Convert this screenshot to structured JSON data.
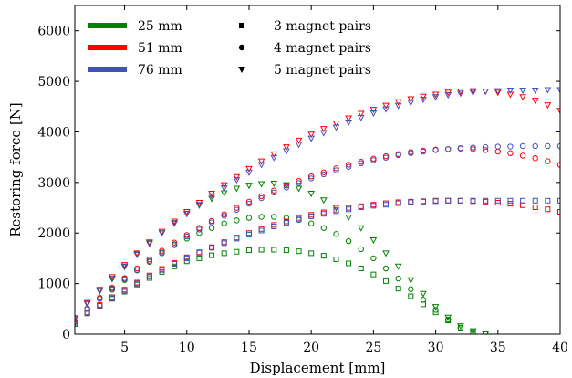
{
  "chart_data": {
    "type": "scatter",
    "xlabel": "Displacement [mm]",
    "ylabel": "Restoring force [N]",
    "xlim": [
      1,
      40
    ],
    "ylim": [
      0,
      6500
    ],
    "xticks": [
      5,
      10,
      15,
      20,
      25,
      30,
      35,
      40
    ],
    "yticks": [
      0,
      1000,
      2000,
      3000,
      4000,
      5000,
      6000
    ],
    "grid": false,
    "legend": {
      "placement": "top-left",
      "colors": [
        {
          "label": "25 mm",
          "color": "#008000"
        },
        {
          "label": "51 mm",
          "color": "#ff0000"
        },
        {
          "label": "76 mm",
          "color": "#4050c0"
        }
      ],
      "markers": [
        {
          "label": "3 magnet pairs",
          "marker": "square"
        },
        {
          "label": "4 magnet pairs",
          "marker": "circle"
        },
        {
          "label": "5 magnet pairs",
          "marker": "triangle"
        }
      ]
    },
    "x": [
      1,
      2,
      3,
      4,
      5,
      6,
      7,
      8,
      9,
      10,
      11,
      12,
      13,
      14,
      15,
      16,
      17,
      18,
      19,
      20,
      21,
      22,
      23,
      24,
      25,
      26,
      27,
      28,
      29,
      30,
      31,
      32,
      33,
      34,
      35,
      36,
      37,
      38,
      39,
      40
    ],
    "series": [
      {
        "color": "#008000",
        "marker": "square",
        "values": [
          200,
          420,
          560,
          700,
          840,
          980,
          1110,
          1230,
          1340,
          1440,
          1500,
          1560,
          1600,
          1630,
          1660,
          1670,
          1670,
          1660,
          1640,
          1600,
          1550,
          1480,
          1400,
          1300,
          1180,
          1050,
          900,
          750,
          590,
          430,
          270,
          130,
          40,
          0,
          null,
          null,
          null,
          null,
          null,
          null
        ]
      },
      {
        "color": "#008000",
        "marker": "circle",
        "values": [
          240,
          500,
          700,
          880,
          1070,
          1260,
          1430,
          1600,
          1760,
          1890,
          2000,
          2100,
          2190,
          2250,
          2300,
          2320,
          2320,
          2300,
          2260,
          2190,
          2100,
          1980,
          1840,
          1680,
          1500,
          1300,
          1100,
          890,
          680,
          480,
          290,
          120,
          20,
          null,
          null,
          null,
          null,
          null,
          null,
          null
        ]
      },
      {
        "color": "#008000",
        "marker": "triangle",
        "values": [
          300,
          600,
          850,
          1090,
          1330,
          1580,
          1800,
          2000,
          2200,
          2380,
          2550,
          2680,
          2790,
          2880,
          2940,
          2970,
          2980,
          2950,
          2880,
          2780,
          2650,
          2500,
          2310,
          2100,
          1860,
          1600,
          1340,
          1070,
          800,
          540,
          330,
          160,
          60,
          0,
          null,
          null,
          null,
          null,
          null,
          null
        ]
      },
      {
        "color": "#ff0000",
        "marker": "square",
        "values": [
          210,
          430,
          580,
          730,
          880,
          1020,
          1160,
          1290,
          1410,
          1520,
          1620,
          1720,
          1820,
          1910,
          2000,
          2080,
          2160,
          2230,
          2300,
          2360,
          2410,
          2460,
          2500,
          2530,
          2560,
          2590,
          2610,
          2620,
          2630,
          2640,
          2640,
          2640,
          2630,
          2620,
          2600,
          2580,
          2550,
          2510,
          2470,
          2420
        ]
      },
      {
        "color": "#ff0000",
        "marker": "circle",
        "values": [
          260,
          510,
          720,
          920,
          1110,
          1300,
          1480,
          1650,
          1810,
          1960,
          2100,
          2240,
          2370,
          2500,
          2620,
          2730,
          2840,
          2940,
          3030,
          3120,
          3200,
          3280,
          3350,
          3410,
          3470,
          3520,
          3560,
          3600,
          3630,
          3650,
          3660,
          3670,
          3660,
          3640,
          3610,
          3580,
          3530,
          3480,
          3420,
          3350
        ]
      },
      {
        "color": "#ff0000",
        "marker": "triangle",
        "values": [
          320,
          620,
          880,
          1130,
          1370,
          1600,
          1820,
          2030,
          2230,
          2420,
          2600,
          2780,
          2950,
          3110,
          3270,
          3420,
          3560,
          3700,
          3830,
          3950,
          4060,
          4170,
          4270,
          4360,
          4440,
          4520,
          4590,
          4650,
          4700,
          4740,
          4780,
          4800,
          4810,
          4800,
          4780,
          4740,
          4690,
          4620,
          4530,
          4420
        ]
      },
      {
        "color": "#4050c0",
        "marker": "square",
        "values": [
          200,
          410,
          560,
          710,
          860,
          1000,
          1140,
          1270,
          1390,
          1500,
          1610,
          1710,
          1800,
          1890,
          1970,
          2050,
          2130,
          2200,
          2270,
          2330,
          2380,
          2430,
          2470,
          2510,
          2540,
          2560,
          2590,
          2610,
          2620,
          2630,
          2640,
          2640,
          2640,
          2640,
          2640,
          2640,
          2640,
          2640,
          2640,
          2640
        ]
      },
      {
        "color": "#4050c0",
        "marker": "circle",
        "values": [
          250,
          500,
          700,
          900,
          1090,
          1270,
          1450,
          1620,
          1780,
          1930,
          2070,
          2210,
          2340,
          2460,
          2580,
          2690,
          2800,
          2900,
          2990,
          3080,
          3160,
          3240,
          3310,
          3380,
          3440,
          3490,
          3540,
          3580,
          3610,
          3640,
          3660,
          3680,
          3690,
          3700,
          3710,
          3710,
          3720,
          3720,
          3720,
          3720
        ]
      },
      {
        "color": "#4050c0",
        "marker": "triangle",
        "values": [
          300,
          600,
          860,
          1100,
          1340,
          1570,
          1790,
          2000,
          2190,
          2380,
          2560,
          2730,
          2890,
          3050,
          3200,
          3350,
          3490,
          3620,
          3750,
          3870,
          3980,
          4090,
          4190,
          4280,
          4370,
          4450,
          4520,
          4580,
          4640,
          4690,
          4730,
          4760,
          4780,
          4800,
          4810,
          4820,
          4820,
          4820,
          4830,
          4830
        ]
      }
    ]
  }
}
